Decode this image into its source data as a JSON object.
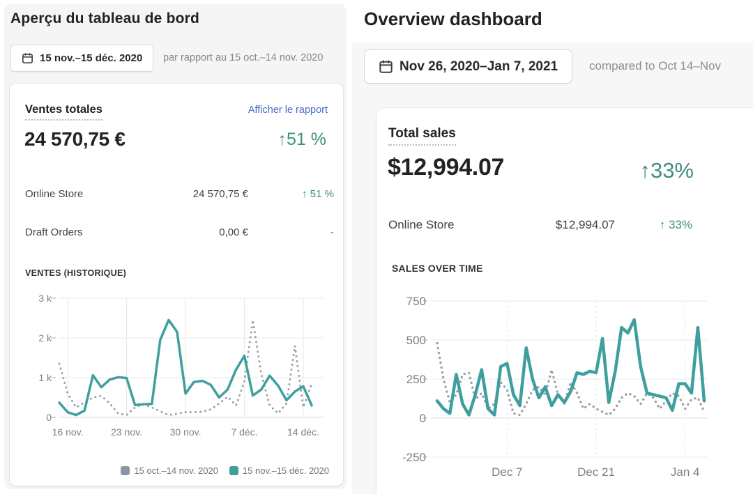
{
  "colors": {
    "accent_teal": "#3f9f9f",
    "previous_period_gray": "#9aa0a8",
    "positive_green": "#3f8e7b",
    "link_blue": "#4a6bc5",
    "page_background": "#f5f5f6"
  },
  "left_panel": {
    "title": "Aperçu du tableau de bord",
    "date_range": "15 nov.–15 déc. 2020",
    "comparison": "par rapport au 15 oct.–14 nov. 2020",
    "card": {
      "metric_title": "Ventes totales",
      "report_link": "Afficher le rapport",
      "total_value": "24 570,75 €",
      "total_delta": "↑51 %",
      "rows": [
        {
          "label": "Online Store",
          "value": "24 570,75 €",
          "delta": "↑ 51 %"
        },
        {
          "label": "Draft Orders",
          "value": "0,00 €",
          "delta": "-"
        }
      ],
      "chart_title": "VENTES (HISTORIQUE)",
      "legend": [
        {
          "label": "15 oct.–14 nov. 2020",
          "color": "#8b95a5"
        },
        {
          "label": "15 nov.–15 déc. 2020",
          "color": "#3f9f9f"
        }
      ]
    }
  },
  "right_panel": {
    "title": "Overview dashboard",
    "date_range": "Nov 26, 2020–Jan 7, 2021",
    "comparison": "compared to Oct 14–Nov",
    "card": {
      "metric_title": "Total sales",
      "total_value": "$12,994.07",
      "total_delta": "↑33%",
      "rows": [
        {
          "label": "Online Store",
          "value": "$12,994.07",
          "delta": "↑ 33%"
        }
      ],
      "chart_title": "SALES OVER TIME"
    }
  },
  "chart_data": [
    {
      "type": "line",
      "title": "VENTES (HISTORIQUE)",
      "x_note": "daily values, current period 15 nov.–15 déc. 2020 overlaid on previous period 15 oct.–14 nov. 2020",
      "ylim": [
        0,
        3000
      ],
      "y_ticks": [
        {
          "v": 3000,
          "label": "3 k"
        },
        {
          "v": 2000,
          "label": "2 k"
        },
        {
          "v": 1000,
          "label": "1 k"
        },
        {
          "v": 0,
          "label": "0"
        }
      ],
      "x_ticks": [
        {
          "i": 1,
          "label": "16 nov."
        },
        {
          "i": 8,
          "label": "23 nov."
        },
        {
          "i": 15,
          "label": "30 nov."
        },
        {
          "i": 22,
          "label": "7 déc."
        },
        {
          "i": 29,
          "label": "14 déc."
        }
      ],
      "series": [
        {
          "name": "15 oct.–14 nov. 2020",
          "style": "dotted",
          "color": "#9aa0a8",
          "values": [
            1350,
            600,
            250,
            380,
            500,
            540,
            350,
            100,
            60,
            250,
            330,
            250,
            150,
            60,
            90,
            130,
            130,
            140,
            200,
            350,
            520,
            300,
            900,
            2450,
            1100,
            300,
            100,
            350,
            1800,
            250,
            850
          ]
        },
        {
          "name": "15 nov.–15 déc. 2020",
          "style": "solid",
          "color": "#3f9f9f",
          "values": [
            370,
            130,
            60,
            170,
            1060,
            760,
            950,
            1010,
            990,
            310,
            330,
            340,
            1950,
            2450,
            2150,
            600,
            890,
            920,
            820,
            500,
            700,
            1200,
            1550,
            550,
            700,
            1050,
            800,
            430,
            650,
            780,
            300
          ]
        }
      ],
      "grid": true,
      "legend_position": "bottom-right"
    },
    {
      "type": "line",
      "title": "SALES OVER TIME",
      "x_note": "daily values, current period Nov 26, 2020–Jan 7, 2021 overlaid on previous period (Oct 14–Nov…)",
      "ylim": [
        -250,
        750
      ],
      "y_ticks": [
        {
          "v": 750,
          "label": "750"
        },
        {
          "v": 500,
          "label": "500"
        },
        {
          "v": 250,
          "label": "250"
        },
        {
          "v": 0,
          "label": "0"
        },
        {
          "v": -250,
          "label": "-250"
        }
      ],
      "x_ticks": [
        {
          "i": 11,
          "label": "Dec 7"
        },
        {
          "i": 25,
          "label": "Dec 21"
        },
        {
          "i": 39,
          "label": "Jan 4"
        }
      ],
      "series": [
        {
          "name": "Oct 14–Nov",
          "style": "dotted",
          "color": "#9aa0a8",
          "values": [
            480,
            250,
            100,
            150,
            280,
            290,
            120,
            160,
            60,
            90,
            230,
            180,
            30,
            20,
            90,
            180,
            200,
            150,
            310,
            150,
            90,
            230,
            160,
            60,
            90,
            60,
            40,
            20,
            60,
            130,
            160,
            140,
            90,
            160,
            130,
            60,
            110,
            160,
            140,
            60,
            120,
            130,
            40
          ]
        },
        {
          "name": "Nov 26, 2020–Jan 7, 2021",
          "style": "solid",
          "color": "#3f9f9f",
          "values": [
            110,
            60,
            30,
            280,
            90,
            20,
            150,
            310,
            60,
            20,
            330,
            350,
            150,
            80,
            450,
            250,
            130,
            200,
            80,
            150,
            100,
            170,
            290,
            280,
            300,
            290,
            510,
            100,
            300,
            580,
            545,
            630,
            330,
            160,
            150,
            140,
            130,
            50,
            220,
            220,
            160,
            580,
            110
          ]
        }
      ],
      "grid": true,
      "legend_position": "none"
    }
  ]
}
